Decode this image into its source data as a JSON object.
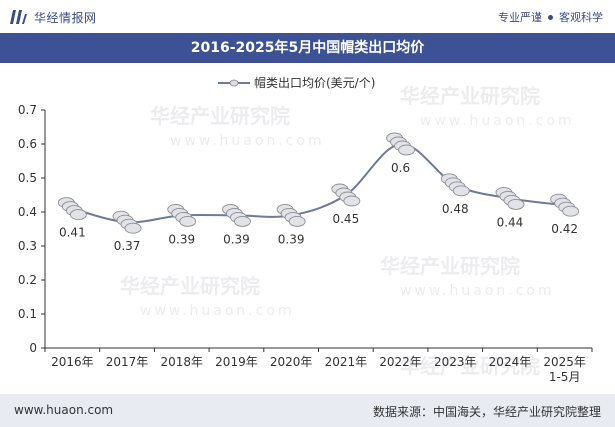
{
  "header": {
    "brand": "华经情报网",
    "slogan_left": "专业严谨",
    "slogan_right": "客观科学"
  },
  "watermark": {
    "text": "华经产业研究院",
    "url": "www.huaon.com"
  },
  "chart_data": {
    "type": "line",
    "title": "2016-2025年5月中国帽类出口均价",
    "legend_label": "帽类出口均价(美元/个)",
    "categories": [
      "2016年",
      "2017年",
      "2018年",
      "2019年",
      "2020年",
      "2021年",
      "2022年",
      "2023年",
      "2024年",
      "2025年\n1-5月"
    ],
    "series": [
      {
        "name": "帽类出口均价(美元/个)",
        "values": [
          0.41,
          0.37,
          0.39,
          0.39,
          0.39,
          0.45,
          0.6,
          0.48,
          0.44,
          0.42
        ],
        "labels": [
          "0.41",
          "0.37",
          "0.39",
          "0.39",
          "0.39",
          "0.45",
          "0.6",
          "0.48",
          "0.44",
          "0.42"
        ],
        "color": "#6b7a9e"
      }
    ],
    "yticks": [
      "0",
      "0.1",
      "0.2",
      "0.3",
      "0.4",
      "0.5",
      "0.6",
      "0.7"
    ],
    "ylim": [
      0,
      0.7
    ],
    "xlabel": "",
    "ylabel": "",
    "legend_position": "top-center",
    "grid": false
  },
  "footer": {
    "url": "www.huaon.com",
    "source": "数据来源：中国海关，华经产业研究院整理"
  }
}
